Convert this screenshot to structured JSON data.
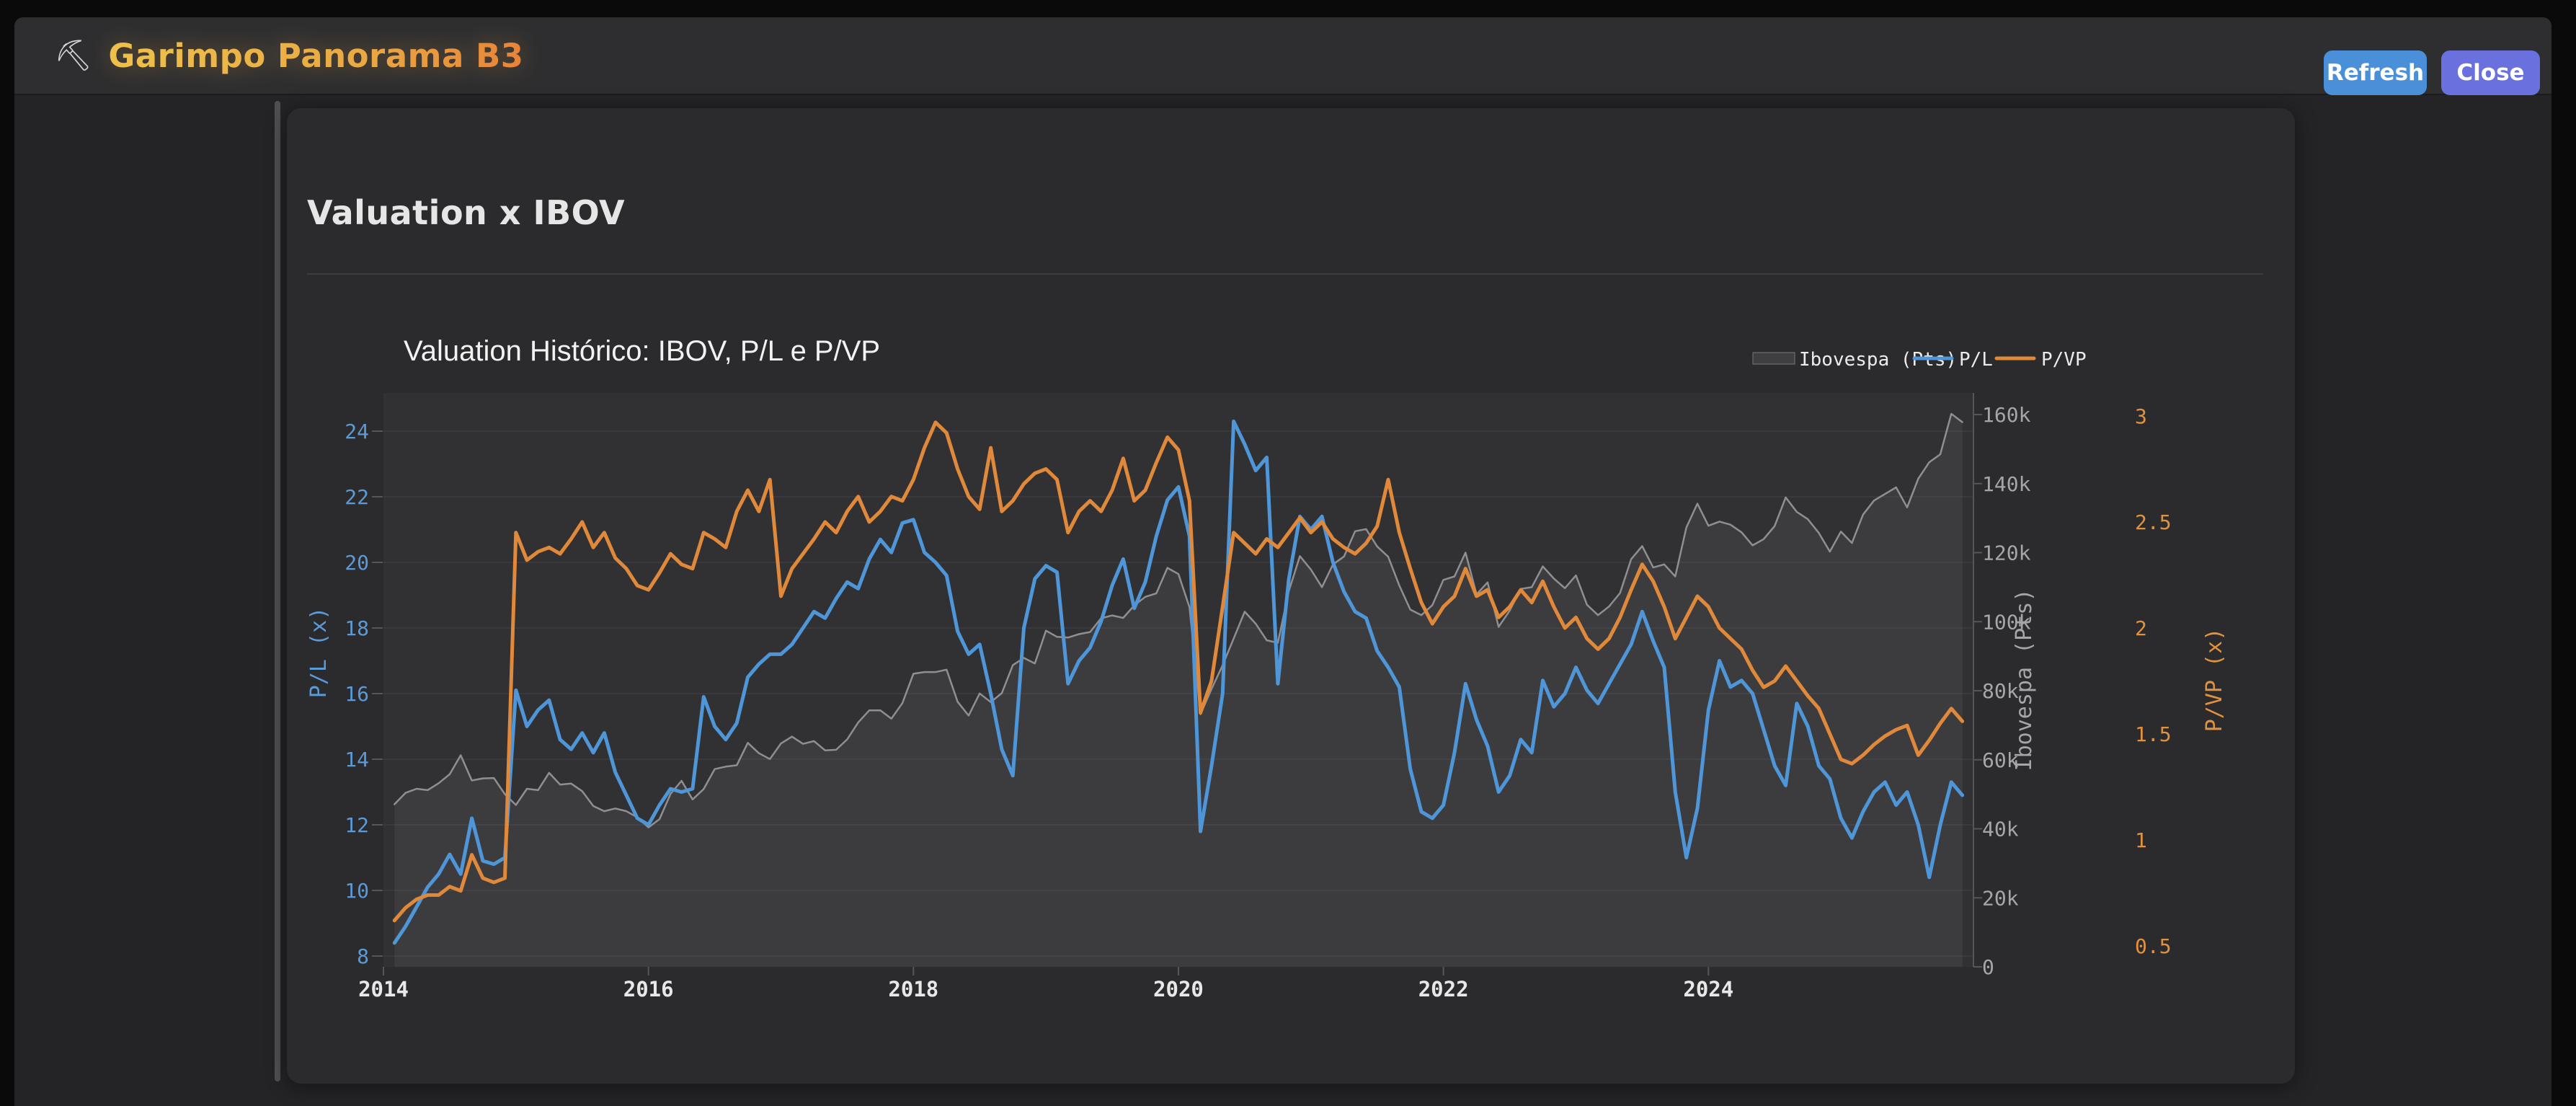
{
  "topbar": {
    "icon": "⛏",
    "title": "Garimpo Panorama B3",
    "refresh_label": "Refresh",
    "close_label": "Close",
    "colors": {
      "refresh": "#4a90d9",
      "close": "#6a70dd",
      "title_gold": "#eec14b",
      "title_orange": "#e8833a"
    }
  },
  "card": {
    "heading": "Valuation x IBOV"
  },
  "chart_data": {
    "type": "line",
    "title": "Valuation Histórico: IBOV, P/L e P/VP",
    "grid": true,
    "legend_position": "top-right",
    "x_tick_labels": [
      "2014",
      "2016",
      "2018",
      "2020",
      "2022",
      "2024"
    ],
    "x_tick_years": [
      2014,
      2016,
      2018,
      2020,
      2022,
      2024
    ],
    "axes": {
      "left": {
        "title": "P/L (x)",
        "color": "#5b9ad6",
        "ticks": [
          8,
          10,
          12,
          14,
          16,
          18,
          20,
          22,
          24
        ],
        "range": [
          7.67,
          25.17
        ]
      },
      "right1": {
        "title": "Ibovespa (Pts)",
        "color": "#a6a6a8",
        "tick_labels": [
          "0",
          "20k",
          "40k",
          "60k",
          "80k",
          "100k",
          "120k",
          "140k",
          "160k"
        ],
        "tick_values": [
          0,
          20000,
          40000,
          60000,
          80000,
          100000,
          120000,
          140000,
          160000
        ],
        "range": [
          0,
          166300
        ]
      },
      "right2": {
        "title": "P/VP (x)",
        "color": "#e0923f",
        "ticks": [
          0.5,
          1,
          1.5,
          2,
          2.5,
          3
        ],
        "range": [
          0.4,
          3.11
        ]
      }
    },
    "legend": [
      {
        "label": "Ibovespa (Pts)",
        "swatch": "area",
        "color": "#8f8f93"
      },
      {
        "label": "P/L",
        "swatch": "line",
        "color": "#4e96d8"
      },
      {
        "label": "P/VP",
        "swatch": "line",
        "color": "#e0893b"
      }
    ],
    "x": [
      "2014-02",
      "2014-03",
      "2014-04",
      "2014-05",
      "2014-06",
      "2014-07",
      "2014-08",
      "2014-09",
      "2014-10",
      "2014-11",
      "2014-12",
      "2015-01",
      "2015-02",
      "2015-03",
      "2015-04",
      "2015-05",
      "2015-06",
      "2015-07",
      "2015-08",
      "2015-09",
      "2015-10",
      "2015-11",
      "2015-12",
      "2016-01",
      "2016-02",
      "2016-03",
      "2016-04",
      "2016-05",
      "2016-06",
      "2016-07",
      "2016-08",
      "2016-09",
      "2016-10",
      "2016-11",
      "2016-12",
      "2017-01",
      "2017-02",
      "2017-03",
      "2017-04",
      "2017-05",
      "2017-06",
      "2017-07",
      "2017-08",
      "2017-09",
      "2017-10",
      "2017-11",
      "2017-12",
      "2018-01",
      "2018-02",
      "2018-03",
      "2018-04",
      "2018-05",
      "2018-06",
      "2018-07",
      "2018-08",
      "2018-09",
      "2018-10",
      "2018-11",
      "2018-12",
      "2019-01",
      "2019-02",
      "2019-03",
      "2019-04",
      "2019-05",
      "2019-06",
      "2019-07",
      "2019-08",
      "2019-09",
      "2019-10",
      "2019-11",
      "2019-12",
      "2020-01",
      "2020-02",
      "2020-03",
      "2020-04",
      "2020-05",
      "2020-06",
      "2020-07",
      "2020-08",
      "2020-09",
      "2020-10",
      "2020-11",
      "2020-12",
      "2021-01",
      "2021-02",
      "2021-03",
      "2021-04",
      "2021-05",
      "2021-06",
      "2021-07",
      "2021-08",
      "2021-09",
      "2021-10",
      "2021-11",
      "2021-12",
      "2022-01",
      "2022-02",
      "2022-03",
      "2022-04",
      "2022-05",
      "2022-06",
      "2022-07",
      "2022-08",
      "2022-09",
      "2022-10",
      "2022-11",
      "2022-12",
      "2023-01",
      "2023-02",
      "2023-03",
      "2023-04",
      "2023-05",
      "2023-06",
      "2023-07",
      "2023-08",
      "2023-09",
      "2023-10",
      "2023-11",
      "2023-12",
      "2024-01",
      "2024-02",
      "2024-03",
      "2024-04",
      "2024-05",
      "2024-06",
      "2024-07",
      "2024-08",
      "2024-09",
      "2024-10",
      "2024-11",
      "2024-12",
      "2025-01",
      "2025-02",
      "2025-03",
      "2025-04",
      "2025-05",
      "2025-06",
      "2025-07",
      "2025-08",
      "2025-09",
      "2025-10",
      "2025-11",
      "2025-12"
    ],
    "series": [
      {
        "name": "Ibovespa (Pts)",
        "axis": "right1",
        "style": "area",
        "color": "#8f8f93",
        "width": 2.5,
        "values": [
          47100,
          50400,
          51600,
          51200,
          53200,
          55800,
          61300,
          54000,
          54600,
          54700,
          50000,
          46900,
          51600,
          51200,
          56200,
          52800,
          53100,
          50900,
          46600,
          45100,
          45900,
          45100,
          43300,
          40400,
          42800,
          50100,
          53900,
          48500,
          51500,
          57300,
          58000,
          58400,
          64900,
          61900,
          60200,
          64700,
          66700,
          64600,
          65400,
          62700,
          62900,
          65900,
          70800,
          74300,
          74300,
          71900,
          76400,
          84900,
          85400,
          85400,
          86100,
          76800,
          72800,
          79200,
          76700,
          79300,
          87400,
          89500,
          87900,
          97400,
          95600,
          95400,
          96400,
          97000,
          101000,
          101800,
          101100,
          104700,
          107200,
          108200,
          115600,
          113800,
          104200,
          73200,
          80500,
          87400,
          95100,
          102900,
          99400,
          94600,
          93900,
          108900,
          119000,
          115100,
          110000,
          116600,
          118900,
          126200,
          126800,
          121800,
          118800,
          110500,
          103500,
          101900,
          104800,
          112100,
          113100,
          120000,
          107900,
          111400,
          98500,
          103200,
          109500,
          110000,
          116000,
          112500,
          109700,
          113400,
          104900,
          101900,
          104400,
          108300,
          118100,
          121900,
          115700,
          116600,
          113100,
          127300,
          134200,
          127800,
          129000,
          128100,
          125900,
          122100,
          123900,
          127700,
          136000,
          131800,
          129700,
          125700,
          120300,
          126100,
          122800,
          131000,
          135100,
          137000,
          138900,
          133100,
          141400,
          146200,
          148500,
          160200,
          157800
        ]
      },
      {
        "name": "P/L",
        "axis": "left",
        "style": "line",
        "color": "#4e96d8",
        "width": 5,
        "values": [
          8.4,
          8.9,
          9.5,
          10.1,
          10.5,
          11.1,
          10.5,
          12.2,
          10.9,
          10.8,
          11.0,
          16.1,
          15.0,
          15.5,
          15.8,
          14.6,
          14.3,
          14.8,
          14.2,
          14.8,
          13.6,
          12.9,
          12.2,
          12.0,
          12.6,
          13.1,
          13.0,
          13.1,
          15.9,
          15.0,
          14.6,
          15.1,
          16.5,
          16.9,
          17.2,
          17.2,
          17.5,
          18.0,
          18.5,
          18.3,
          18.9,
          19.4,
          19.2,
          20.1,
          20.7,
          20.3,
          21.2,
          21.3,
          20.3,
          20.0,
          19.6,
          17.9,
          17.2,
          17.5,
          16.0,
          14.3,
          13.5,
          18.0,
          19.5,
          19.9,
          19.7,
          16.3,
          17.0,
          17.4,
          18.2,
          19.3,
          20.1,
          18.6,
          19.4,
          20.8,
          21.9,
          22.3,
          20.8,
          11.8,
          13.8,
          16.0,
          24.3,
          23.6,
          22.8,
          23.2,
          16.3,
          19.5,
          21.4,
          21.0,
          21.4,
          20.0,
          19.1,
          18.5,
          18.3,
          17.3,
          16.8,
          16.2,
          13.7,
          12.4,
          12.2,
          12.6,
          14.2,
          16.3,
          15.2,
          14.4,
          13.0,
          13.5,
          14.6,
          14.2,
          16.4,
          15.6,
          16.0,
          16.8,
          16.1,
          15.7,
          16.3,
          16.9,
          17.5,
          18.5,
          17.6,
          16.8,
          13.0,
          11.0,
          12.5,
          15.5,
          17.0,
          16.2,
          16.4,
          16.0,
          14.9,
          13.8,
          13.2,
          15.7,
          15.0,
          13.8,
          13.4,
          12.2,
          11.6,
          12.4,
          13.0,
          13.3,
          12.6,
          13.0,
          12.0,
          10.4,
          12.0,
          13.3,
          12.9
        ]
      },
      {
        "name": "P/VP",
        "axis": "right2",
        "style": "line",
        "color": "#e0893b",
        "width": 5,
        "values": [
          0.62,
          0.68,
          0.72,
          0.74,
          0.74,
          0.78,
          0.76,
          0.93,
          0.82,
          0.8,
          0.82,
          2.45,
          2.32,
          2.36,
          2.38,
          2.35,
          2.42,
          2.5,
          2.38,
          2.45,
          2.33,
          2.28,
          2.2,
          2.18,
          2.26,
          2.35,
          2.3,
          2.28,
          2.45,
          2.42,
          2.38,
          2.55,
          2.65,
          2.55,
          2.7,
          2.15,
          2.28,
          2.35,
          2.42,
          2.5,
          2.45,
          2.55,
          2.62,
          2.5,
          2.55,
          2.62,
          2.6,
          2.7,
          2.85,
          2.97,
          2.92,
          2.75,
          2.62,
          2.56,
          2.85,
          2.55,
          2.6,
          2.68,
          2.73,
          2.75,
          2.7,
          2.45,
          2.55,
          2.6,
          2.55,
          2.65,
          2.8,
          2.6,
          2.65,
          2.78,
          2.9,
          2.84,
          2.6,
          1.6,
          1.75,
          2.1,
          2.45,
          2.4,
          2.35,
          2.42,
          2.38,
          2.45,
          2.52,
          2.45,
          2.5,
          2.42,
          2.38,
          2.35,
          2.4,
          2.48,
          2.7,
          2.45,
          2.28,
          2.12,
          2.02,
          2.1,
          2.15,
          2.28,
          2.15,
          2.18,
          2.05,
          2.1,
          2.18,
          2.12,
          2.22,
          2.1,
          2.0,
          2.05,
          1.95,
          1.9,
          1.95,
          2.05,
          2.18,
          2.3,
          2.22,
          2.1,
          1.95,
          2.05,
          2.15,
          2.1,
          2.0,
          1.95,
          1.9,
          1.8,
          1.72,
          1.75,
          1.82,
          1.75,
          1.68,
          1.62,
          1.5,
          1.38,
          1.36,
          1.4,
          1.45,
          1.49,
          1.52,
          1.54,
          1.4,
          1.47,
          1.55,
          1.62,
          1.56
        ]
      }
    ]
  }
}
